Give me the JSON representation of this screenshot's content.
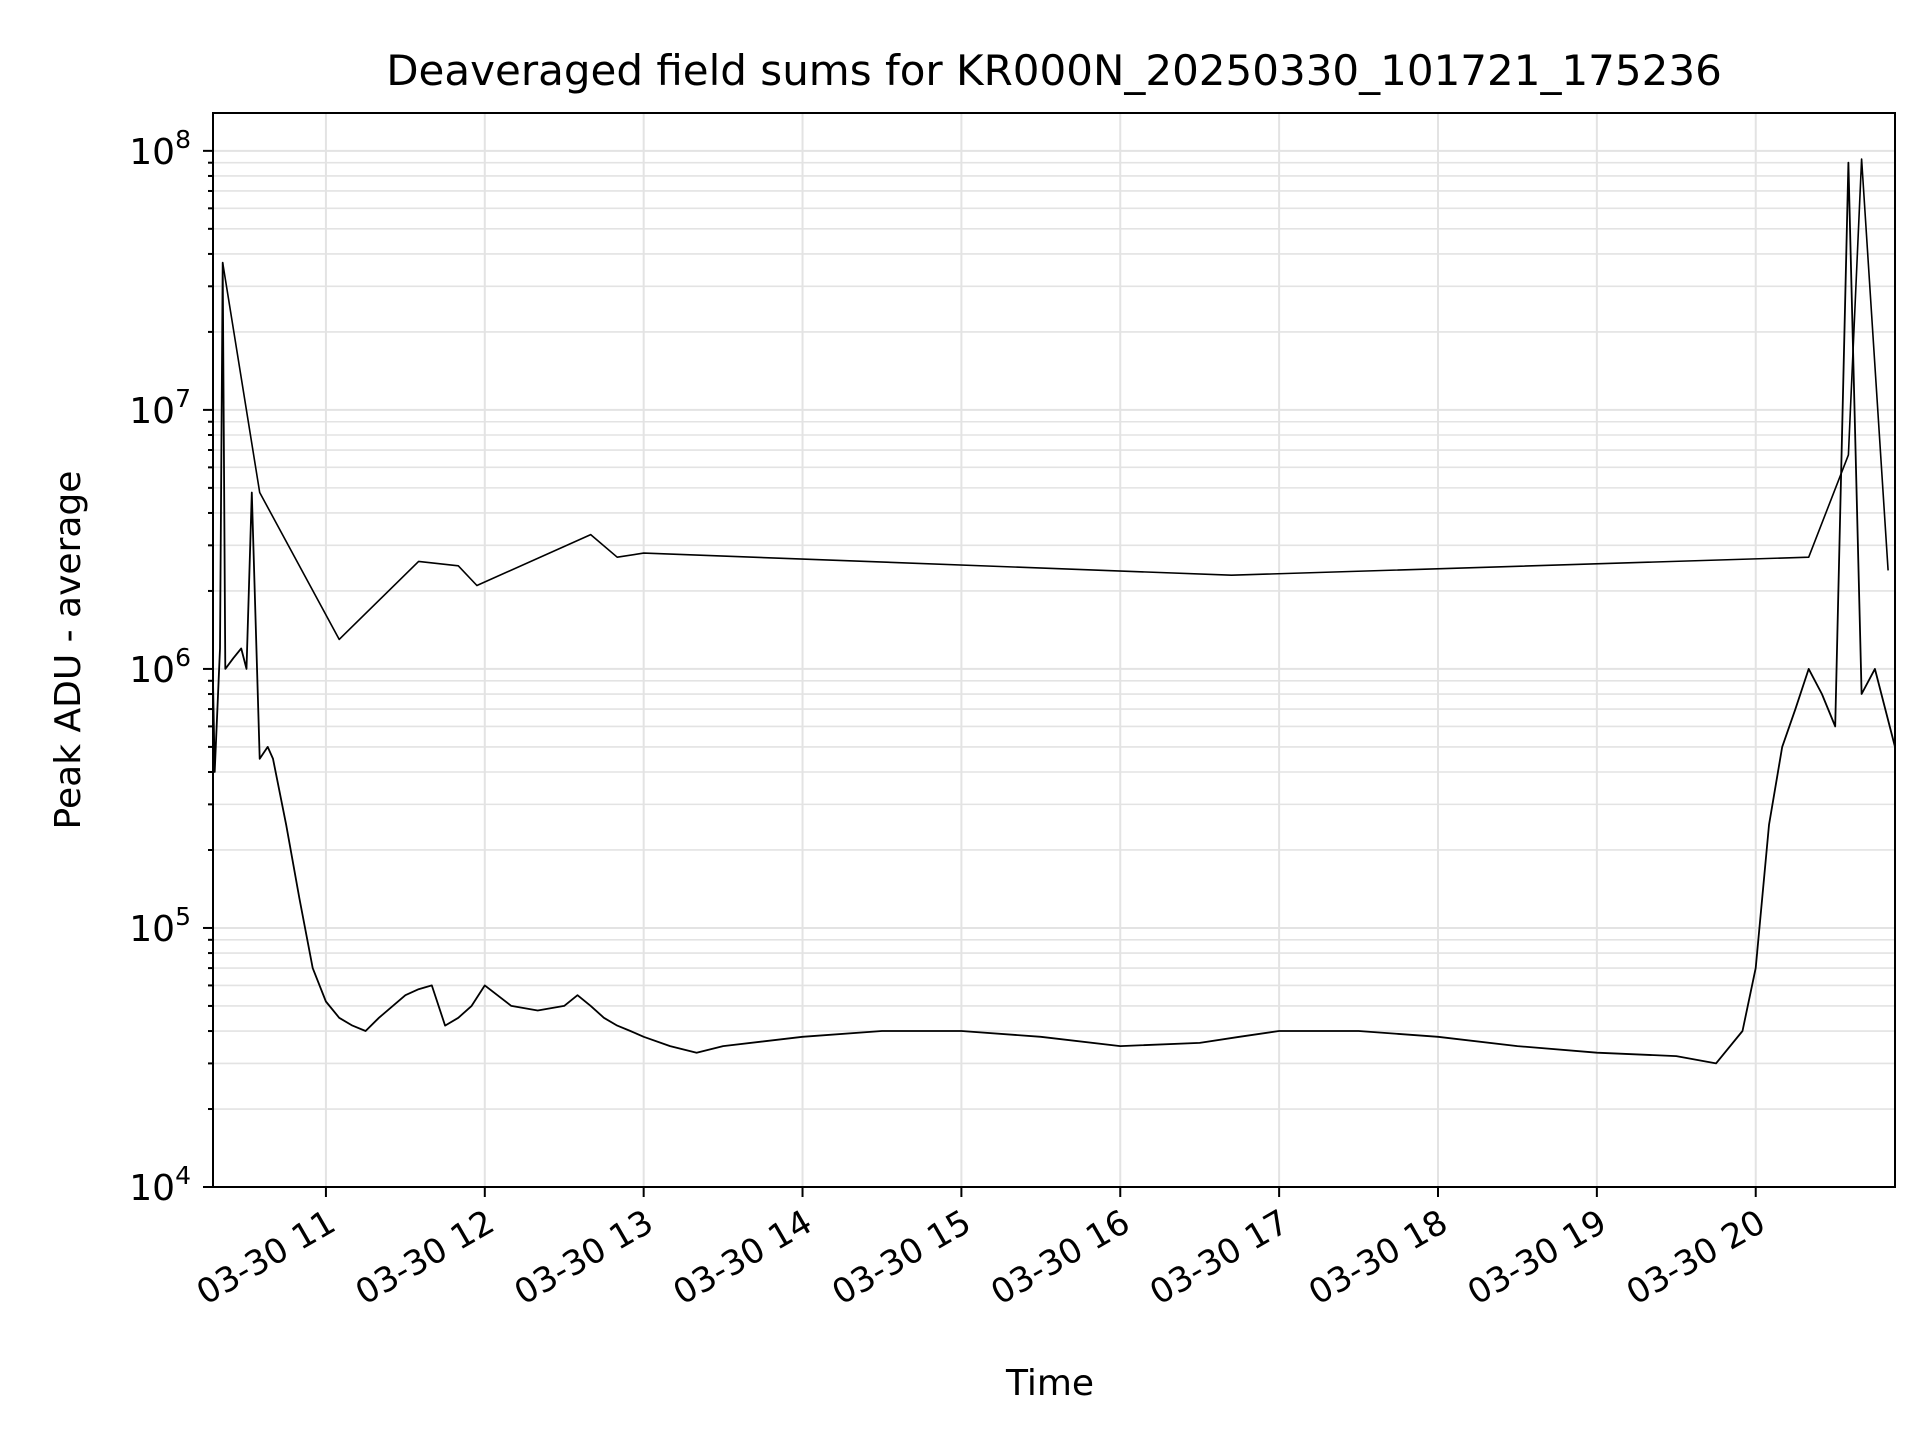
{
  "chart_data": {
    "type": "line",
    "title": "Deaveraged field sums for KR000N_20250330_101721_175236",
    "xlabel": "Time",
    "ylabel": "Peak ADU - average",
    "yscale": "log",
    "ylim": [
      10000,
      140000000
    ],
    "xlim": [
      "2025-03-30 10:17:21",
      "2025-03-30 20:52:36"
    ],
    "grid": true,
    "line_color": "#000000",
    "y_ticks": [
      {
        "value": 10000,
        "base": "10",
        "exp": "4"
      },
      {
        "value": 100000,
        "base": "10",
        "exp": "5"
      },
      {
        "value": 1000000,
        "base": "10",
        "exp": "6"
      },
      {
        "value": 10000000,
        "base": "10",
        "exp": "7"
      },
      {
        "value": 100000000,
        "base": "10",
        "exp": "8"
      }
    ],
    "x_ticks": [
      {
        "value": "2025-03-30 11:00",
        "label": "03-30 11"
      },
      {
        "value": "2025-03-30 12:00",
        "label": "03-30 12"
      },
      {
        "value": "2025-03-30 13:00",
        "label": "03-30 13"
      },
      {
        "value": "2025-03-30 14:00",
        "label": "03-30 14"
      },
      {
        "value": "2025-03-30 15:00",
        "label": "03-30 15"
      },
      {
        "value": "2025-03-30 16:00",
        "label": "03-30 16"
      },
      {
        "value": "2025-03-30 17:00",
        "label": "03-30 17"
      },
      {
        "value": "2025-03-30 18:00",
        "label": "03-30 18"
      },
      {
        "value": "2025-03-30 19:00",
        "label": "03-30 19"
      },
      {
        "value": "2025-03-30 20:00",
        "label": "03-30 20"
      }
    ],
    "series": [
      {
        "x": [
          "2025-03-30 10:17:21",
          "2025-03-30 10:18:00",
          "2025-03-30 10:20:00",
          "2025-03-30 10:21:00",
          "2025-03-30 10:22:00",
          "2025-03-30 10:25:00",
          "2025-03-30 10:28:00",
          "2025-03-30 10:30:00",
          "2025-03-30 10:32:00",
          "2025-03-30 10:35:00",
          "2025-03-30 10:38:00",
          "2025-03-30 10:40:00",
          "2025-03-30 10:45:00",
          "2025-03-30 10:50:00",
          "2025-03-30 10:55:00",
          "2025-03-30 11:00:00",
          "2025-03-30 11:05:00",
          "2025-03-30 11:10:00",
          "2025-03-30 11:15:00",
          "2025-03-30 11:20:00",
          "2025-03-30 11:30:00",
          "2025-03-30 11:35:00",
          "2025-03-30 11:40:00",
          "2025-03-30 11:45:00",
          "2025-03-30 11:50:00",
          "2025-03-30 11:55:00",
          "2025-03-30 12:00:00",
          "2025-03-30 12:10:00",
          "2025-03-30 12:20:00",
          "2025-03-30 12:30:00",
          "2025-03-30 12:35:00",
          "2025-03-30 12:40:00",
          "2025-03-30 12:45:00",
          "2025-03-30 12:50:00",
          "2025-03-30 12:55:00",
          "2025-03-30 13:00:00",
          "2025-03-30 13:10:00",
          "2025-03-30 13:20:00",
          "2025-03-30 13:30:00",
          "2025-03-30 14:00:00",
          "2025-03-30 14:30:00",
          "2025-03-30 15:00:00",
          "2025-03-30 15:30:00",
          "2025-03-30 16:00:00",
          "2025-03-30 16:30:00",
          "2025-03-30 16:45:00",
          "2025-03-30 17:00:00",
          "2025-03-30 17:30:00",
          "2025-03-30 18:00:00",
          "2025-03-30 18:30:00",
          "2025-03-30 19:00:00",
          "2025-03-30 19:30:00",
          "2025-03-30 19:45:00",
          "2025-03-30 19:55:00",
          "2025-03-30 20:00:00",
          "2025-03-30 20:05:00",
          "2025-03-30 20:10:00",
          "2025-03-30 20:15:00",
          "2025-03-30 20:20:00",
          "2025-03-30 20:25:00",
          "2025-03-30 20:30:00",
          "2025-03-30 20:35:00",
          "2025-03-30 20:40:00",
          "2025-03-30 20:45:00",
          "2025-03-30 20:52:36"
        ],
        "y": [
          900000,
          400000,
          1200000,
          37000000,
          1000000,
          1100000,
          1200000,
          1000000,
          4800000,
          450000,
          500000,
          450000,
          250000,
          130000,
          70000,
          52000,
          45000,
          42000,
          40000,
          45000,
          55000,
          58000,
          60000,
          42000,
          45000,
          50000,
          60000,
          50000,
          48000,
          50000,
          55000,
          50000,
          45000,
          42000,
          40000,
          38000,
          35000,
          33000,
          35000,
          38000,
          40000,
          40000,
          38000,
          35000,
          36000,
          38000,
          40000,
          40000,
          38000,
          35000,
          33000,
          32000,
          30000,
          40000,
          70000,
          250000,
          500000,
          700000,
          1000000,
          800000,
          600000,
          90000000,
          800000,
          1000000,
          500000
        ]
      },
      {
        "x": [
          "2025-03-30 10:21:00",
          "2025-03-30 10:35:00",
          "2025-03-30 11:05:00",
          "2025-03-30 11:35:00",
          "2025-03-30 11:50:00",
          "2025-03-30 11:57:00",
          "2025-03-30 12:40:00",
          "2025-03-30 12:50:00",
          "2025-03-30 13:00:00",
          "2025-03-30 16:42:00",
          "2025-03-30 20:20:00",
          "2025-03-30 20:35:00",
          "2025-03-30 20:40:00",
          "2025-03-30 20:50:00"
        ],
        "y": [
          37000000,
          4800000,
          1300000,
          2600000,
          2500000,
          2100000,
          3300000,
          2700000,
          2800000,
          2300000,
          2700000,
          6700000,
          93000000,
          2400000
        ]
      }
    ]
  }
}
